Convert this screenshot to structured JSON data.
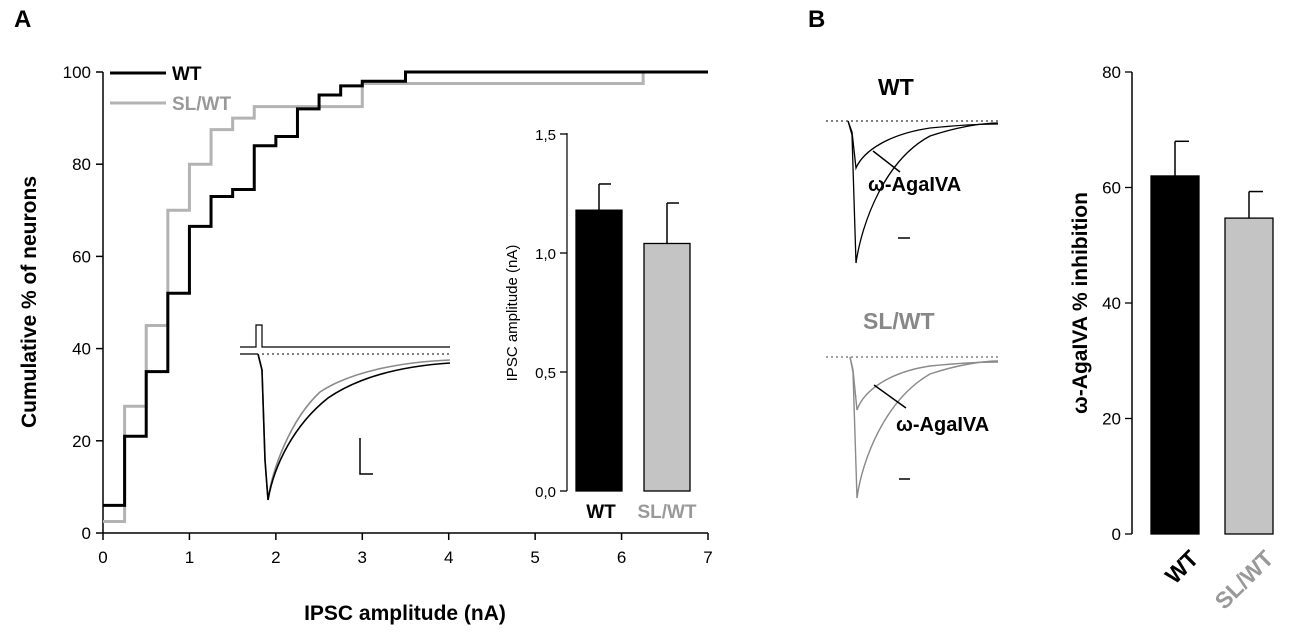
{
  "chart_data": [
    {
      "id": "A-cumulative",
      "panel_label": "A",
      "type": "line",
      "step": true,
      "xlabel": "IPSC amplitude (nA)",
      "ylabel": "Cumulative % of neurons",
      "xlim": [
        0,
        7
      ],
      "ylim": [
        0,
        100
      ],
      "xticks": [
        "0",
        "1",
        "2",
        "3",
        "4",
        "5",
        "6",
        "7"
      ],
      "yticks": [
        "0",
        "20",
        "40",
        "60",
        "80",
        "100"
      ],
      "legend_position": "top-left",
      "series": [
        {
          "name": "WT",
          "color": "#000000",
          "x": [
            0,
            0.25,
            0.5,
            0.75,
            1.0,
            1.25,
            1.5,
            1.75,
            2.0,
            2.25,
            2.5,
            2.75,
            3.0,
            3.5,
            7.0
          ],
          "y": [
            6,
            21,
            35,
            52,
            66.5,
            73,
            74.5,
            84,
            86,
            92,
            95,
            97,
            98,
            100,
            100
          ]
        },
        {
          "name": "SL/WT",
          "color": "#b3b3b3",
          "x": [
            0,
            0.25,
            0.5,
            0.75,
            1.0,
            1.25,
            1.5,
            1.75,
            3.0,
            6.25,
            7.0
          ],
          "y": [
            2.5,
            27.5,
            45,
            70,
            80,
            87.5,
            90,
            92.5,
            97.5,
            100,
            100
          ]
        }
      ]
    },
    {
      "id": "A-inset-bar",
      "type": "bar",
      "ylabel": "IPSC amplitude (nA)",
      "ylim": [
        0,
        1.5
      ],
      "yticks": [
        "0,0",
        "0,5",
        "1,0",
        "1,5"
      ],
      "categories": [
        "WT",
        "SL/WT"
      ],
      "values": [
        1.18,
        1.04
      ],
      "errors": [
        0.11,
        0.17
      ],
      "colors": [
        "#000000",
        "#c4c4c4"
      ]
    },
    {
      "id": "B-bar",
      "panel_label": "B",
      "type": "bar",
      "ylabel": "ω-AgaIVA % inhibition",
      "ylim": [
        0,
        80
      ],
      "yticks": [
        "0",
        "20",
        "40",
        "60",
        "80"
      ],
      "categories": [
        "WT",
        "SL/WT"
      ],
      "values": [
        62,
        54.7
      ],
      "errors": [
        6,
        4.6
      ],
      "colors": [
        "#000000",
        "#c4c4c4"
      ]
    }
  ],
  "traces": {
    "wt_title": "WT",
    "slwt_title": "SL/WT",
    "agent_label_wt": "ω-AgaIVA",
    "agent_label_slwt": "ω-AgaIVA"
  },
  "colors": {
    "black": "#000000",
    "gray": "#a0a0a0",
    "light_gray": "#c4c4c4"
  }
}
